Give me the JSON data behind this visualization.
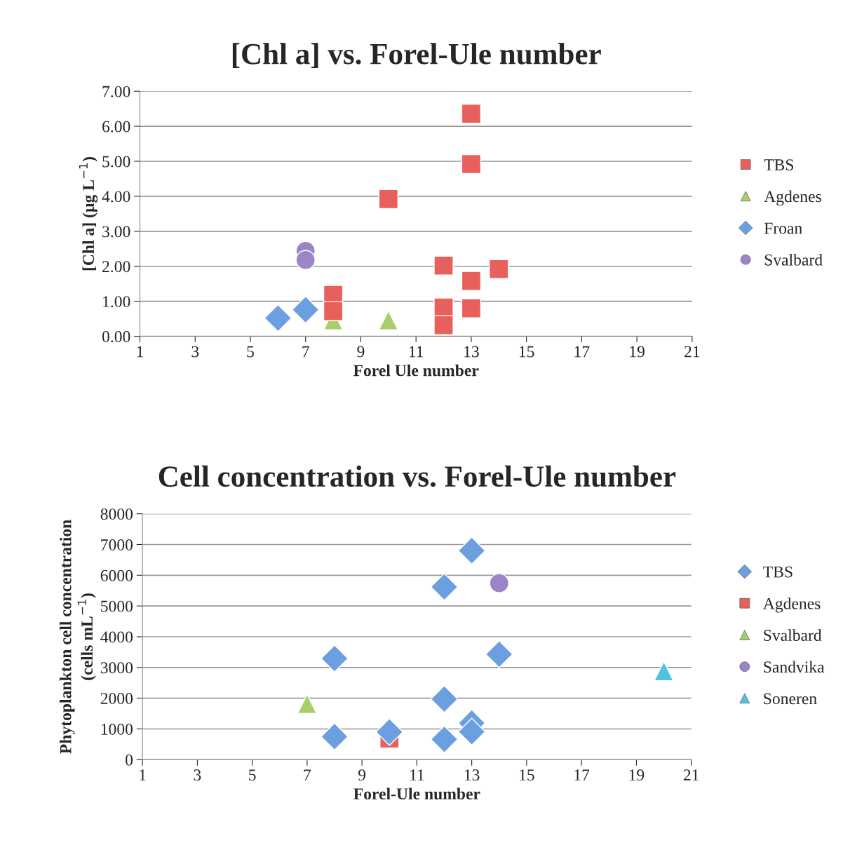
{
  "chart_data": [
    {
      "type": "scatter",
      "title": "[Chl a] vs. Forel-Ule number",
      "xlabel": "Forel Ule number",
      "ylabel": "[Chl a] (µg L$^{−1}$)",
      "xlim": [
        1,
        21
      ],
      "xticks": [
        1,
        3,
        5,
        7,
        9,
        11,
        13,
        15,
        17,
        19,
        21
      ],
      "ylim": [
        0,
        7
      ],
      "yticks": [
        {
          "value": 0,
          "label": "0.00"
        },
        {
          "value": 1,
          "label": "1.00"
        },
        {
          "value": 2,
          "label": "2.00"
        },
        {
          "value": 3,
          "label": "3.00"
        },
        {
          "value": 4,
          "label": "4.00"
        },
        {
          "value": 5,
          "label": "5.00"
        },
        {
          "value": 6,
          "label": "6.00"
        },
        {
          "value": 7,
          "label": "7.00"
        }
      ],
      "grid": "y",
      "legend": "right",
      "series": [
        {
          "name": "TBS",
          "color": "#e8605c",
          "marker": "square",
          "x": [
            13,
            13,
            10,
            12,
            14,
            13,
            8,
            8,
            12,
            13,
            12
          ],
          "values": [
            6.36,
            4.92,
            3.92,
            2.02,
            1.92,
            1.58,
            1.18,
            0.72,
            0.82,
            0.8,
            0.32
          ]
        },
        {
          "name": "Agdenes",
          "color": "#a6cf6a",
          "marker": "triangle",
          "x": [
            8,
            10
          ],
          "values": [
            0.46,
            0.46
          ]
        },
        {
          "name": "Froan",
          "color": "#6c9fe0",
          "marker": "diamond",
          "x": [
            6,
            7
          ],
          "values": [
            0.52,
            0.76
          ]
        },
        {
          "name": "Svalbard",
          "color": "#9c84c8",
          "marker": "circle",
          "x": [
            7,
            7
          ],
          "values": [
            2.44,
            2.18
          ]
        }
      ]
    },
    {
      "type": "scatter",
      "title": "Cell concentration vs. Forel-Ule number",
      "xlabel": "Forel-Ule number",
      "ylabel": "Phytoplankton cell concentration\n(cells mL$^{−1}$)",
      "xlim": [
        1,
        21
      ],
      "xticks": [
        1,
        3,
        5,
        7,
        9,
        11,
        13,
        15,
        17,
        19,
        21
      ],
      "ylim": [
        0,
        8000
      ],
      "yticks": [
        0,
        1000,
        2000,
        3000,
        4000,
        5000,
        6000,
        7000,
        8000
      ],
      "grid": "y",
      "legend": "right",
      "series": [
        {
          "name": "TBS",
          "color": "#6c9fe0",
          "marker": "diamond",
          "x": [
            13,
            12,
            14,
            8,
            12,
            13,
            13,
            10,
            8,
            12
          ],
          "values": [
            6800,
            5620,
            3430,
            3290,
            1970,
            1190,
            910,
            900,
            750,
            660
          ]
        },
        {
          "name": "Agdenes",
          "color": "#e8605c",
          "marker": "square",
          "x": [
            10
          ],
          "values": [
            690
          ]
        },
        {
          "name": "Svalbard",
          "color": "#a6cf6a",
          "marker": "triangle",
          "x": [
            7
          ],
          "values": [
            1810
          ]
        },
        {
          "name": "Sandvika",
          "color": "#9c84c8",
          "marker": "circle",
          "x": [
            14
          ],
          "values": [
            5740
          ]
        },
        {
          "name": "Soneren",
          "color": "#4fc3e0",
          "marker": "triangle",
          "x": [
            20
          ],
          "values": [
            2880
          ]
        }
      ]
    }
  ]
}
